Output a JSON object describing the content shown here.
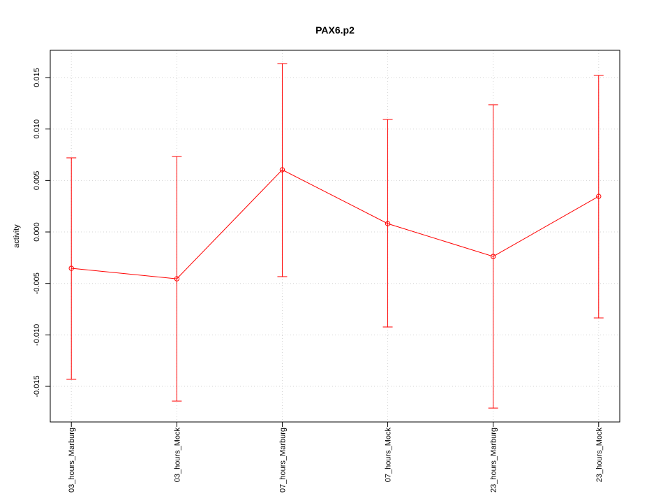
{
  "chart_data": {
    "type": "line",
    "title": "PAX6.p2",
    "y_label": "activity",
    "categories": [
      "03_hours_Marburg",
      "03_hours_Mock",
      "07_hours_Marburg",
      "07_hours_Mock",
      "23_hours_Marburg",
      "23_hours_Mock"
    ],
    "series": [
      {
        "name": "activity",
        "color": "#ff0000",
        "values": [
          -0.00353,
          -0.00455,
          0.00604,
          0.00081,
          -0.00238,
          0.00346
        ],
        "lower": [
          -0.01432,
          -0.01643,
          -0.00434,
          -0.00923,
          -0.01711,
          -0.00835
        ],
        "upper": [
          0.0072,
          0.00733,
          0.01636,
          0.01093,
          0.01236,
          0.01521
        ]
      }
    ],
    "ylim": [
      -0.01846,
      0.01765
    ],
    "yticks": [
      -0.015,
      {
        "value": -0.01,
        "label": "-0.010"
      },
      -0.005,
      {
        "value": 0,
        "label": "0.000"
      },
      0.005,
      {
        "value": 0.01,
        "label": "0.010"
      },
      0.015
    ],
    "grid": true
  }
}
